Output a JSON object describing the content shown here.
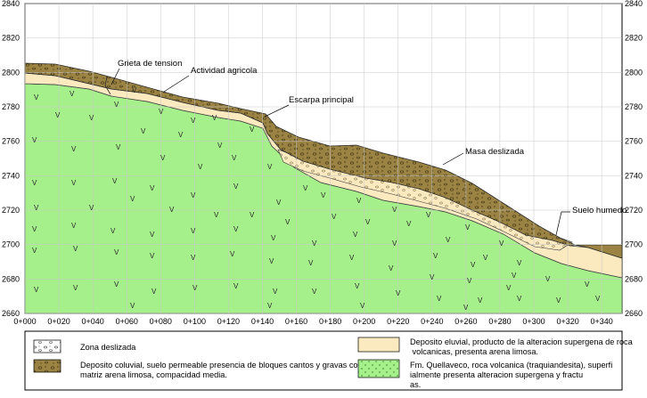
{
  "chart_data": {
    "type": "diagram",
    "title": "",
    "x_ticks": [
      "0+000",
      "0+020",
      "0+040",
      "0+060",
      "0+080",
      "0+100",
      "0+120",
      "0+140",
      "0+160",
      "0+180",
      "0+200",
      "0+220",
      "0+240",
      "0+260",
      "0+280",
      "0+300",
      "0+320",
      "0+340"
    ],
    "y_ticks": [
      "2840",
      "2820",
      "2800",
      "2780",
      "2760",
      "2740",
      "2720",
      "2700",
      "2680",
      "2660"
    ],
    "annotations": [
      "Grieta de tension",
      "Actividad agricola",
      "Escarpa principal",
      "Masa deslizada",
      "Suelo humedo"
    ],
    "legend": [
      {
        "key": "zona",
        "label": "Zona deslizada"
      },
      {
        "key": "coluvial",
        "label": "Deposito coluvial, suelo permeable presencia de bloques cantos  y gravas con matriz arena limosa, compacidad media."
      },
      {
        "key": "eluvial",
        "label": "Deposito eluvial, producto de la alteracion supergena de rocas volcanicas, presenta arena limosa."
      },
      {
        "key": "roca",
        "label": "Fm. Quellaveco, roca volcanica (traquiandesita), superficialmente presenta alteracion supergena y fracturas."
      }
    ],
    "colors": {
      "roca": "#a6f08c",
      "eluvial": "#fbe9c0",
      "coluvial": "#9b8443",
      "zona": "#ffffff",
      "grid": "#c8c8c8"
    }
  }
}
